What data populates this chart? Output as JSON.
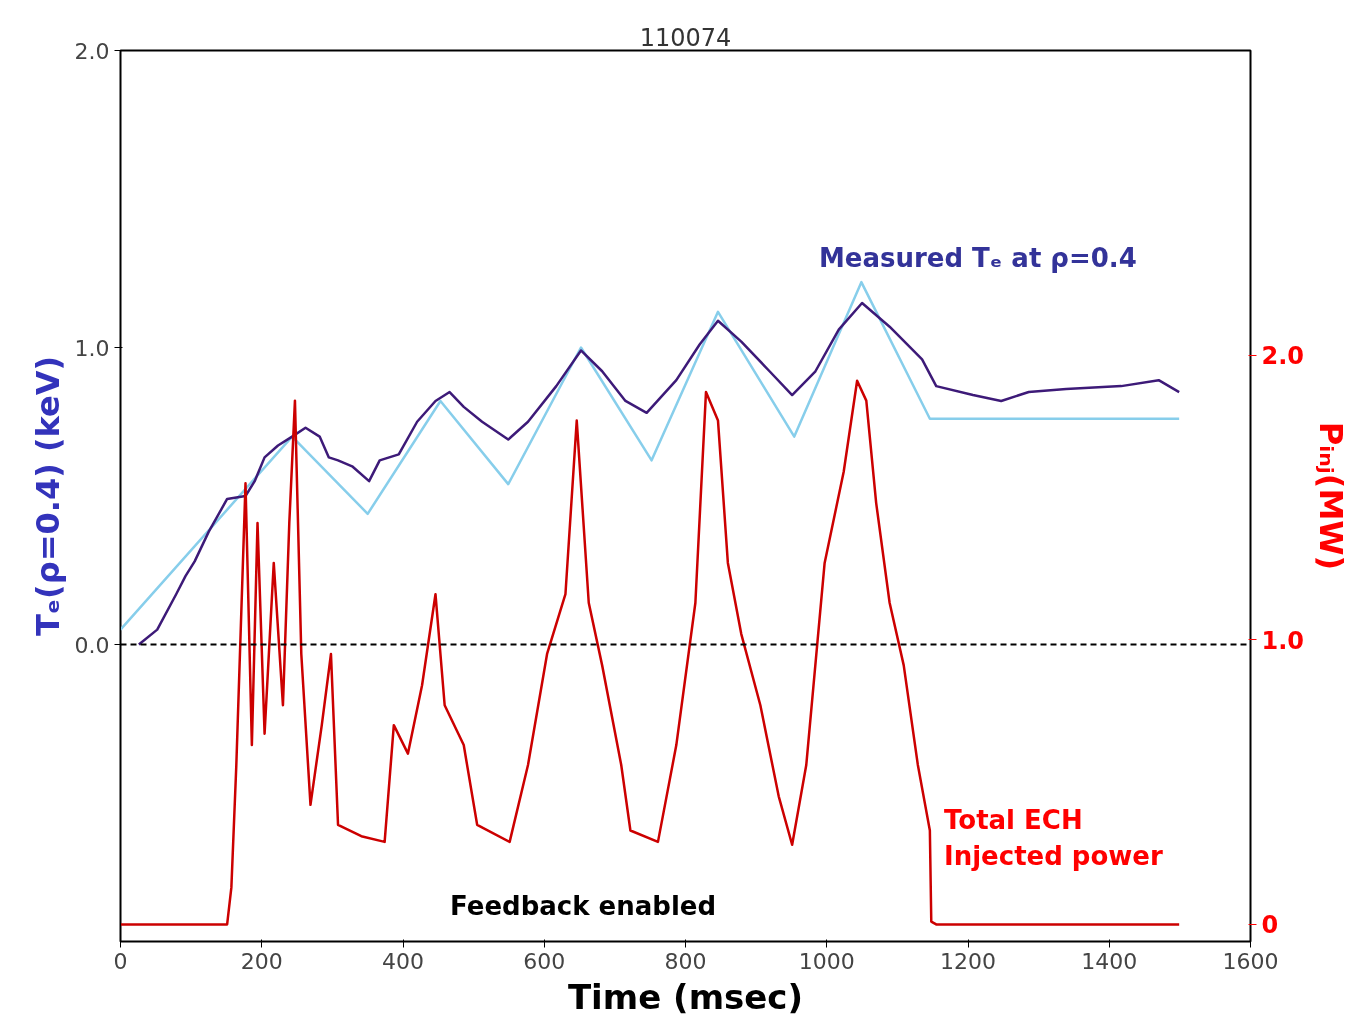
{
  "chart_data": {
    "type": "line",
    "title": "110074",
    "xlabel": "Time (msec)",
    "ylabel": "Tₑ(ρ=0.4) (keV)",
    "y2label": "Pᵢₙⱼ(MW)",
    "xlim": [
      0,
      1600
    ],
    "xticks": [
      0,
      200,
      400,
      600,
      800,
      1000,
      1200,
      1400,
      1600
    ],
    "ylim": [
      -1.0,
      2.0
    ],
    "yticks": [
      {
        "value": 0,
        "label": "0.0"
      },
      {
        "value": 1,
        "label": "1.0"
      },
      {
        "value": 2,
        "label": "2.0"
      }
    ],
    "y2lim": [
      -0.06,
      3.07
    ],
    "y2ticks": [
      {
        "value": 0,
        "label": "0"
      },
      {
        "value": 1,
        "label": "1.0"
      },
      {
        "value": 2,
        "label": "2.0"
      }
    ],
    "grid": false,
    "marker": "none",
    "line_style": "solid",
    "series": [
      {
        "color": "#87ceeb",
        "x": [
          0,
          243,
          350,
          453,
          549,
          652,
          752,
          846,
          954,
          1049,
          1146,
          1499
        ],
        "values": [
          0.05,
          0.7,
          0.44,
          0.82,
          0.54,
          1.0,
          0.62,
          1.12,
          0.7,
          1.22,
          0.76,
          0.76
        ]
      },
      {
        "color": "#3d1a78",
        "x": [
          26,
          52,
          79,
          92,
          105,
          125,
          151,
          177,
          190,
          204,
          223,
          243,
          262,
          282,
          295,
          308,
          328,
          352,
          367,
          394,
          420,
          446,
          466,
          486,
          512,
          549,
          577,
          617,
          652,
          682,
          715,
          745,
          787,
          820,
          846,
          879,
          919,
          951,
          984,
          1017,
          1050,
          1089,
          1135,
          1155,
          1207,
          1247,
          1286,
          1339,
          1417,
          1470,
          1499
        ],
        "values": [
          0.0,
          0.05,
          0.17,
          0.23,
          0.28,
          0.38,
          0.49,
          0.5,
          0.55,
          0.63,
          0.67,
          0.7,
          0.73,
          0.7,
          0.63,
          0.62,
          0.6,
          0.55,
          0.62,
          0.64,
          0.75,
          0.82,
          0.85,
          0.8,
          0.75,
          0.69,
          0.75,
          0.87,
          0.99,
          0.92,
          0.82,
          0.78,
          0.89,
          1.01,
          1.09,
          1.02,
          0.92,
          0.84,
          0.92,
          1.06,
          1.15,
          1.07,
          0.96,
          0.87,
          0.84,
          0.82,
          0.85,
          0.86,
          0.87,
          0.89,
          0.85
        ]
      },
      {
        "color": "#cc0000",
        "axis": "y2",
        "x": [
          0,
          151,
          157,
          164,
          177,
          186,
          194,
          204,
          217,
          230,
          239,
          247,
          256,
          269,
          285,
          298,
          308,
          341,
          374,
          387,
          407,
          427,
          446,
          459,
          486,
          505,
          551,
          577,
          604,
          630,
          646,
          663,
          682,
          709,
          722,
          761,
          787,
          814,
          829,
          846,
          860,
          879,
          906,
          932,
          951,
          971,
          997,
          1024,
          1043,
          1056,
          1070,
          1089,
          1109,
          1129,
          1146,
          1148,
          1155,
          1499
        ],
        "values": [
          0.0,
          0.0,
          0.13,
          0.56,
          1.55,
          0.63,
          1.41,
          0.67,
          1.27,
          0.77,
          1.41,
          1.84,
          0.95,
          0.42,
          0.7,
          0.95,
          0.35,
          0.31,
          0.29,
          0.7,
          0.6,
          0.84,
          1.16,
          0.77,
          0.63,
          0.35,
          0.29,
          0.56,
          0.95,
          1.16,
          1.77,
          1.13,
          0.91,
          0.56,
          0.33,
          0.29,
          0.63,
          1.13,
          1.87,
          1.77,
          1.27,
          1.02,
          0.77,
          0.45,
          0.28,
          0.56,
          1.27,
          1.59,
          1.91,
          1.84,
          1.48,
          1.13,
          0.91,
          0.56,
          0.33,
          0.01,
          0.0,
          0.0
        ]
      }
    ],
    "ref_lines": [
      {
        "axis": "y",
        "value": 0,
        "color": "#000000",
        "line_style": "dashed"
      }
    ],
    "annotations": [
      "Measured Tₑ at ρ=0.4",
      "Total ECH\nInjected power",
      "Feedback enabled"
    ]
  }
}
